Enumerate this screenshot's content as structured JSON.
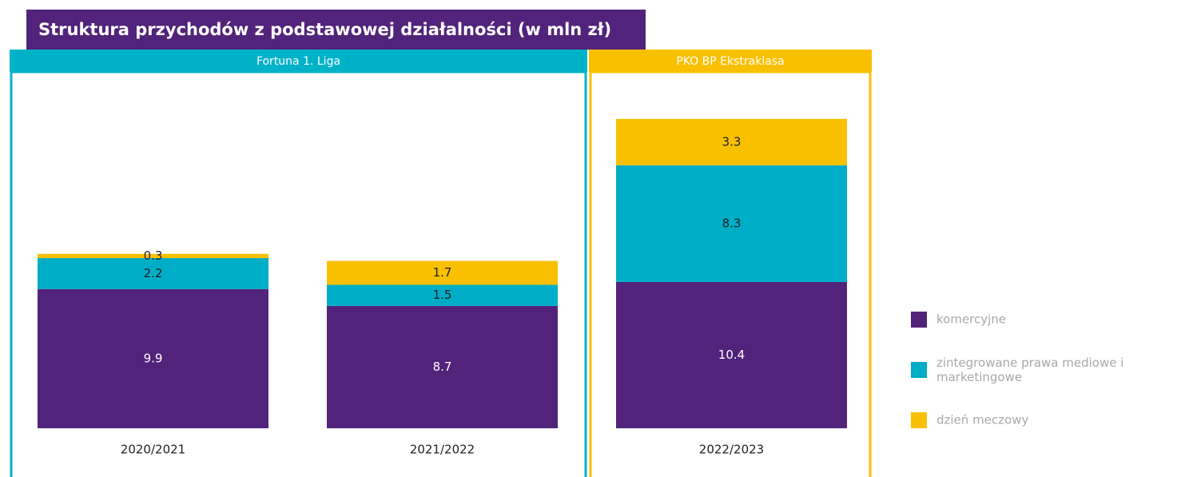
{
  "chart_data": {
    "type": "bar",
    "stacked": true,
    "title": "Struktura przychodów z podstawowej działalności (w mln zł)",
    "groups": [
      "Fortuna 1. Liga",
      "PKO BP Ekstraklasa"
    ],
    "group_colors": [
      "#00b2c8",
      "#f9c000"
    ],
    "categories": [
      "2020/2021",
      "2021/2022",
      "2022/2023"
    ],
    "series": [
      {
        "name": "komercyjne",
        "color": "#52237a",
        "values": [
          9.9,
          8.7,
          10.4
        ]
      },
      {
        "name": "zintegrowane prawa mediowe i marketingowe",
        "color": "#00adc6",
        "values": [
          2.2,
          1.5,
          8.3
        ]
      },
      {
        "name": "dzień meczowy",
        "color": "#f9c000",
        "values": [
          0.3,
          1.7,
          3.3
        ]
      }
    ],
    "ylim": [
      0,
      25
    ]
  }
}
